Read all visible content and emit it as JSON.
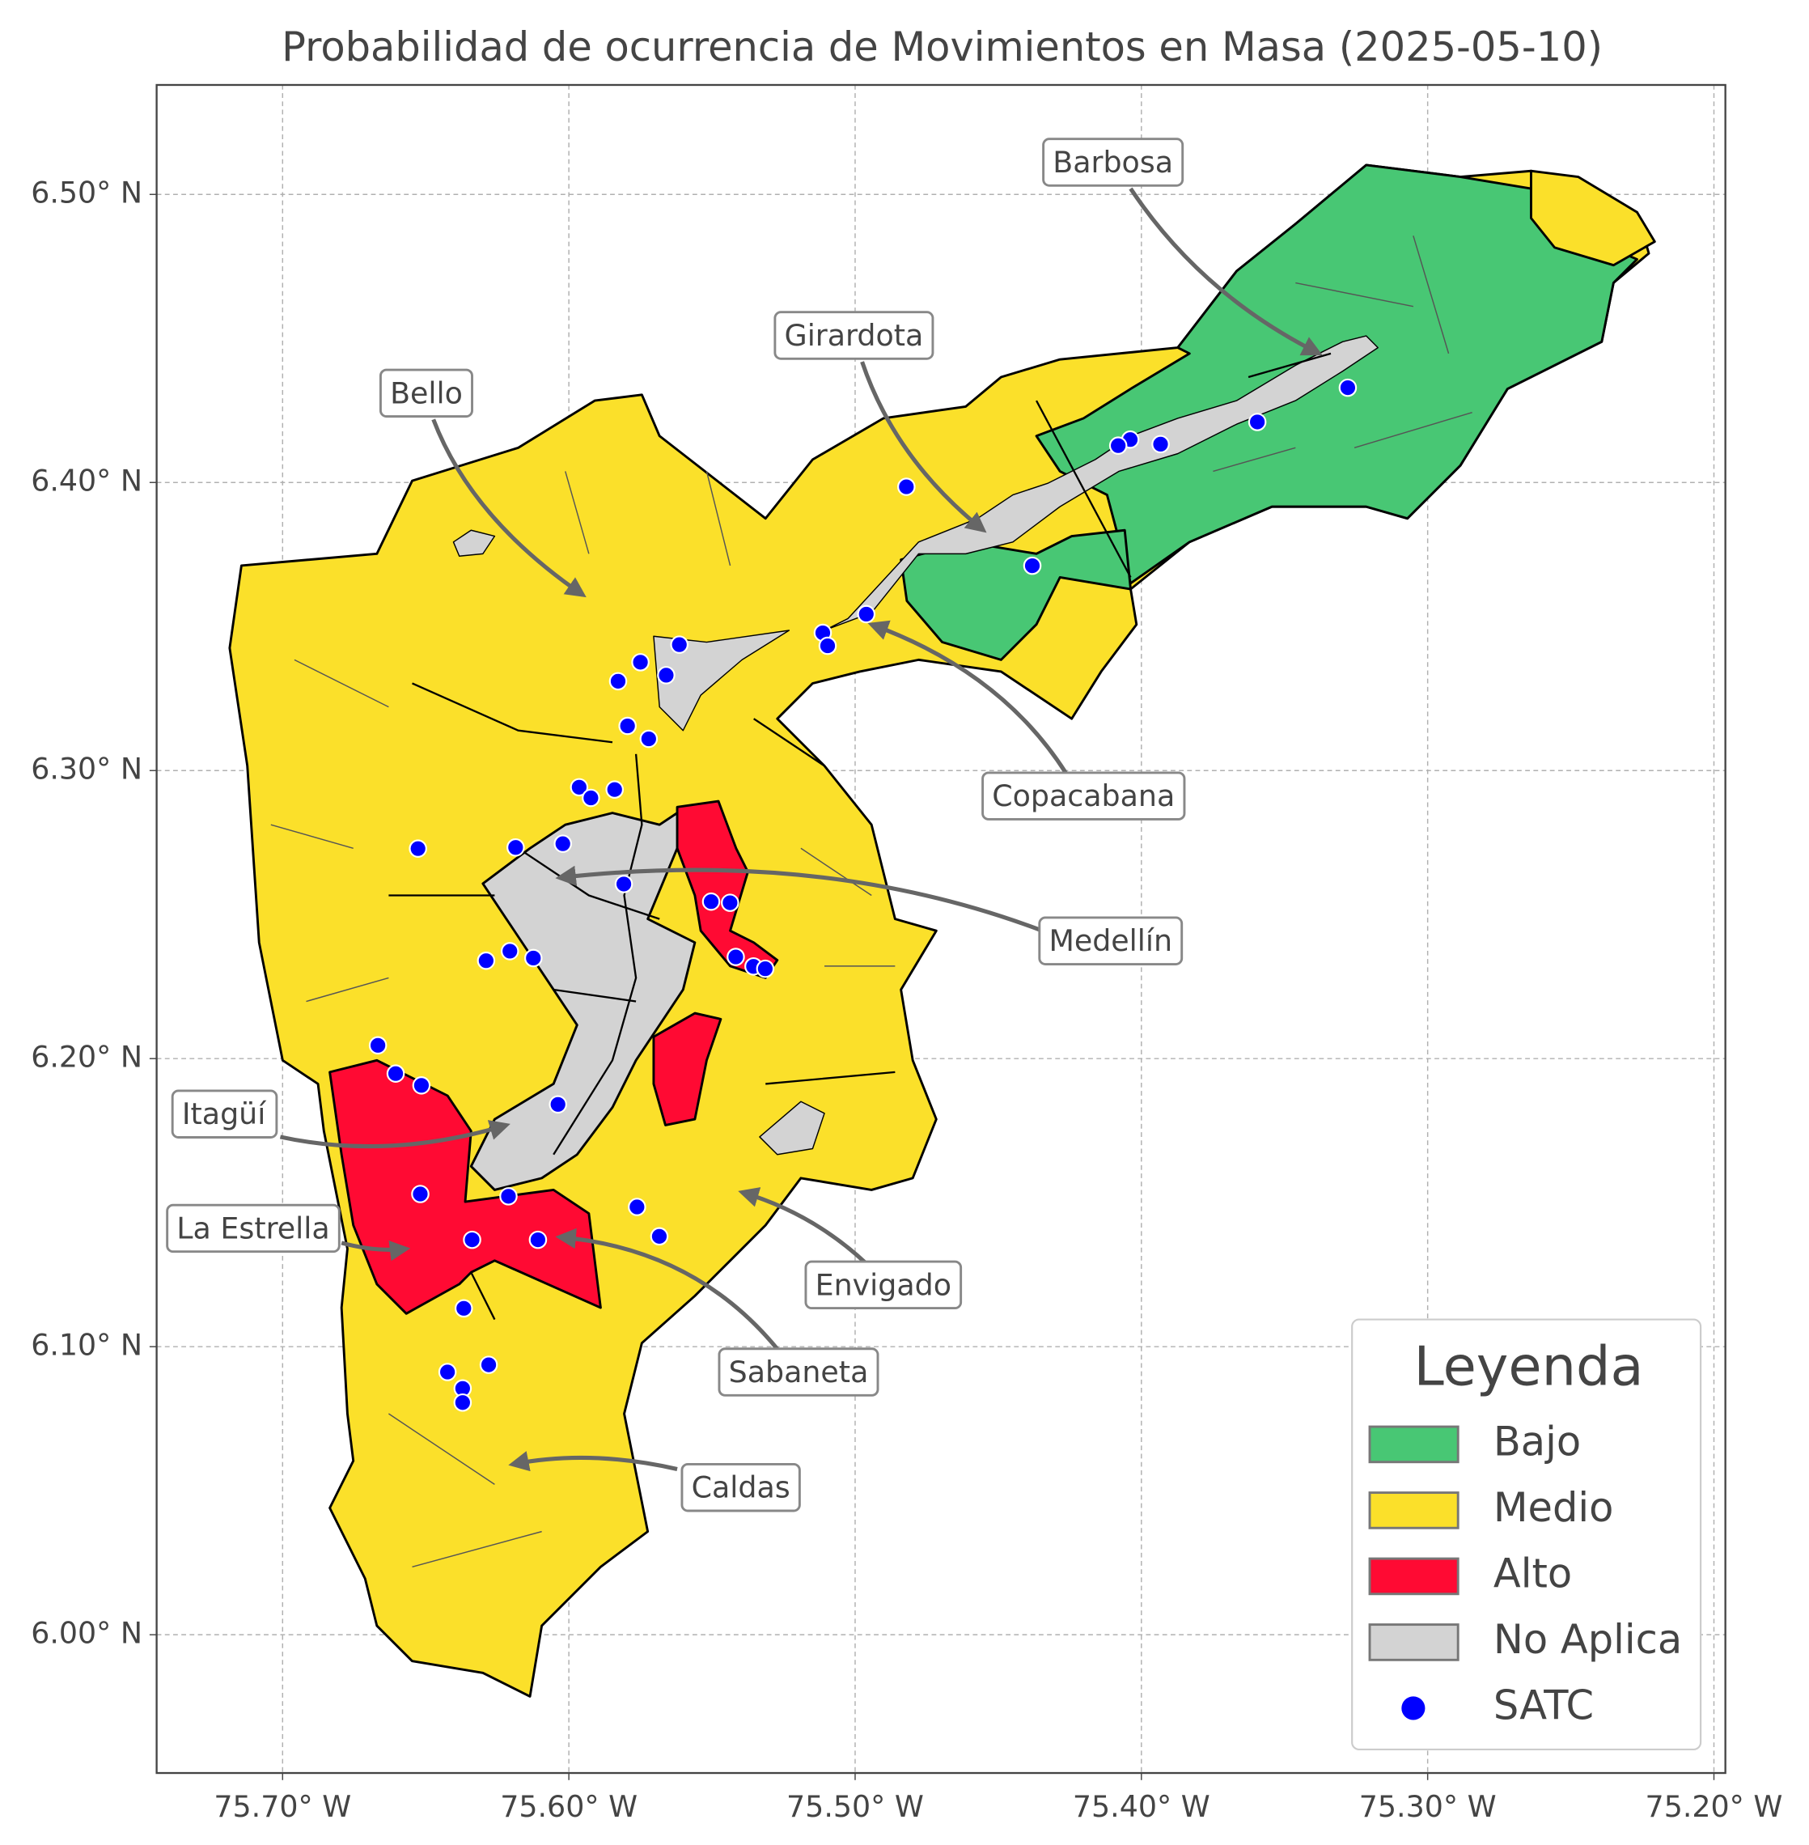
{
  "chart_data": {
    "type": "map",
    "title": "Probabilidad de ocurrencia de Movimientos en Masa (2025-05-10)",
    "xlim": [
      -75.744,
      -75.196
    ],
    "ylim": [
      5.952,
      6.538
    ],
    "xticks": [
      {
        "value": -75.7,
        "label": "75.70° W"
      },
      {
        "value": -75.6,
        "label": "75.60° W"
      },
      {
        "value": -75.5,
        "label": "75.50° W"
      },
      {
        "value": -75.4,
        "label": "75.40° W"
      },
      {
        "value": -75.3,
        "label": "75.30° W"
      },
      {
        "value": -75.2,
        "label": "75.20° W"
      }
    ],
    "yticks": [
      {
        "value": 6.0,
        "label": "6.00° N"
      },
      {
        "value": 6.1,
        "label": "6.10° N"
      },
      {
        "value": 6.2,
        "label": "6.20° N"
      },
      {
        "value": 6.3,
        "label": "6.30° N"
      },
      {
        "value": 6.4,
        "label": "6.40° N"
      },
      {
        "value": 6.5,
        "label": "6.50° N"
      }
    ],
    "grid": true,
    "classes": [
      {
        "name": "Bajo",
        "color": "#48c774"
      },
      {
        "name": "Medio",
        "color": "#fbe02a"
      },
      {
        "name": "Alto",
        "color": "#ff0a33"
      },
      {
        "name": "No Aplica",
        "color": "#d3d3d3"
      }
    ],
    "series": [
      {
        "name": "SATC",
        "color": "#0000ff",
        "x": [
          -75.3279,
          -75.3595,
          -75.3933,
          -75.4039,
          -75.4081,
          -75.4821,
          -75.4381,
          -75.4961,
          -75.5113,
          -75.5096,
          -75.5614,
          -75.575,
          -75.566,
          -75.5828,
          -75.5795,
          -75.5721,
          -75.5964,
          -75.5923,
          -75.584,
          -75.6527,
          -75.6186,
          -75.6021,
          -75.5808,
          -75.5503,
          -75.5437,
          -75.5417,
          -75.5355,
          -75.5314,
          -75.6206,
          -75.6289,
          -75.6124,
          -75.6667,
          -75.6605,
          -75.6515,
          -75.6038,
          -75.6519,
          -75.6211,
          -75.5762,
          -75.5684,
          -75.6108,
          -75.6338,
          -75.6367,
          -75.6424,
          -75.628,
          -75.6371,
          -75.6371
        ],
        "y": [
          6.4329,
          6.421,
          6.4133,
          6.4149,
          6.4128,
          6.3985,
          6.3711,
          6.3543,
          6.3478,
          6.3433,
          6.3437,
          6.3376,
          6.3331,
          6.331,
          6.3155,
          6.311,
          6.2942,
          6.2905,
          6.2934,
          6.2729,
          6.2733,
          6.2746,
          6.2606,
          6.2545,
          6.2541,
          6.2353,
          6.232,
          6.2312,
          6.2373,
          6.234,
          6.2349,
          6.2046,
          6.1948,
          6.1907,
          6.1841,
          6.153,
          6.1522,
          6.1485,
          6.1383,
          6.1371,
          6.1371,
          6.1133,
          6.0912,
          6.0937,
          6.0855,
          6.0806
        ]
      }
    ],
    "legend": {
      "title": "Leyenda",
      "position": "lower right"
    },
    "annotations": [
      {
        "text": "Barbosa"
      },
      {
        "text": "Girardota"
      },
      {
        "text": "Bello"
      },
      {
        "text": "Copacabana"
      },
      {
        "text": "Medellín"
      },
      {
        "text": "Itagüí"
      },
      {
        "text": "La Estrella"
      },
      {
        "text": "Envigado"
      },
      {
        "text": "Sabaneta"
      },
      {
        "text": "Caldas"
      }
    ]
  }
}
